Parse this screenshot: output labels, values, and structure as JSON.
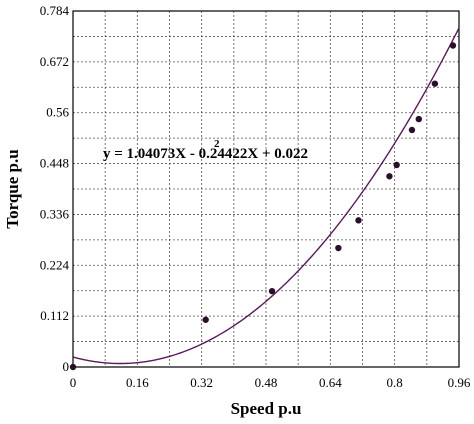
{
  "chart_data": {
    "type": "scatter",
    "xlabel": "Speed p.u",
    "ylabel": "Torque p.u",
    "xlim": [
      0,
      0.96
    ],
    "ylim": [
      0,
      0.784
    ],
    "x_ticks": [
      "0",
      "0.16",
      "0.32",
      "0.48",
      "0.64",
      "0.8",
      "0.96"
    ],
    "y_ticks": [
      "0",
      "0.112",
      "0.224",
      "0.336",
      "0.448",
      "0.56",
      "0.672",
      "0.784"
    ],
    "grid": true,
    "equation": {
      "main": "y = 1.04073X - 0.24422X + 0.022",
      "exponent": "2"
    },
    "points": [
      {
        "x": 0.0,
        "y": 0.0
      },
      {
        "x": 0.33,
        "y": 0.104
      },
      {
        "x": 0.495,
        "y": 0.167
      },
      {
        "x": 0.66,
        "y": 0.262
      },
      {
        "x": 0.71,
        "y": 0.323
      },
      {
        "x": 0.787,
        "y": 0.42
      },
      {
        "x": 0.805,
        "y": 0.445
      },
      {
        "x": 0.843,
        "y": 0.522
      },
      {
        "x": 0.86,
        "y": 0.546
      },
      {
        "x": 0.9,
        "y": 0.624
      },
      {
        "x": 0.945,
        "y": 0.708
      }
    ],
    "fit": {
      "a": 1.04073,
      "b": -0.24422,
      "c": 0.022
    },
    "colors": {
      "points": "#2a0f2a",
      "fit_line": "#5a1a5a",
      "grid": "#555555"
    }
  }
}
